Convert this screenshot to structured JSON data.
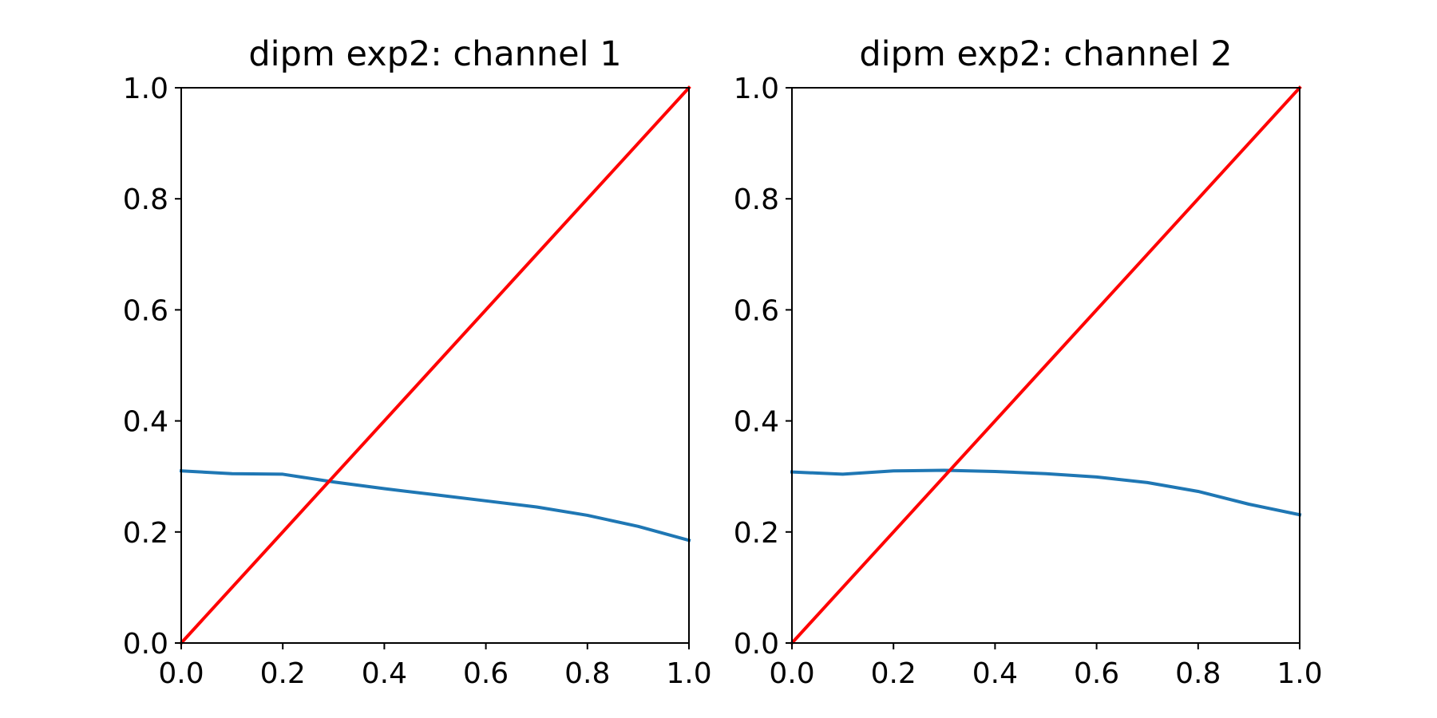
{
  "chart_data": [
    {
      "type": "line",
      "title": "dipm exp2: channel 1",
      "xlabel": "",
      "ylabel": "",
      "xlim": [
        0.0,
        1.0
      ],
      "ylim": [
        0.0,
        1.0
      ],
      "xticks": [
        "0.0",
        "0.2",
        "0.4",
        "0.6",
        "0.8",
        "1.0"
      ],
      "yticks": [
        "0.0",
        "0.2",
        "0.4",
        "0.6",
        "0.8",
        "1.0"
      ],
      "grid": false,
      "series": [
        {
          "color": "#1f77b4",
          "x": [
            0.0,
            0.1,
            0.2,
            0.3,
            0.4,
            0.5,
            0.6,
            0.7,
            0.8,
            0.9,
            1.0
          ],
          "y": [
            0.31,
            0.305,
            0.304,
            0.29,
            0.278,
            0.267,
            0.256,
            0.245,
            0.23,
            0.21,
            0.185
          ]
        },
        {
          "color": "#ff0000",
          "x": [
            0.0,
            1.0
          ],
          "y": [
            0.0,
            1.0
          ]
        }
      ]
    },
    {
      "type": "line",
      "title": "dipm exp2: channel 2",
      "xlabel": "",
      "ylabel": "",
      "xlim": [
        0.0,
        1.0
      ],
      "ylim": [
        0.0,
        1.0
      ],
      "xticks": [
        "0.0",
        "0.2",
        "0.4",
        "0.6",
        "0.8",
        "1.0"
      ],
      "yticks": [
        "0.0",
        "0.2",
        "0.4",
        "0.6",
        "0.8",
        "1.0"
      ],
      "grid": false,
      "series": [
        {
          "color": "#1f77b4",
          "x": [
            0.0,
            0.1,
            0.2,
            0.3,
            0.4,
            0.5,
            0.6,
            0.7,
            0.8,
            0.9,
            1.0
          ],
          "y": [
            0.308,
            0.304,
            0.31,
            0.311,
            0.309,
            0.305,
            0.299,
            0.289,
            0.273,
            0.25,
            0.231
          ]
        },
        {
          "color": "#ff0000",
          "x": [
            0.0,
            1.0
          ],
          "y": [
            0.0,
            1.0
          ]
        }
      ]
    }
  ]
}
